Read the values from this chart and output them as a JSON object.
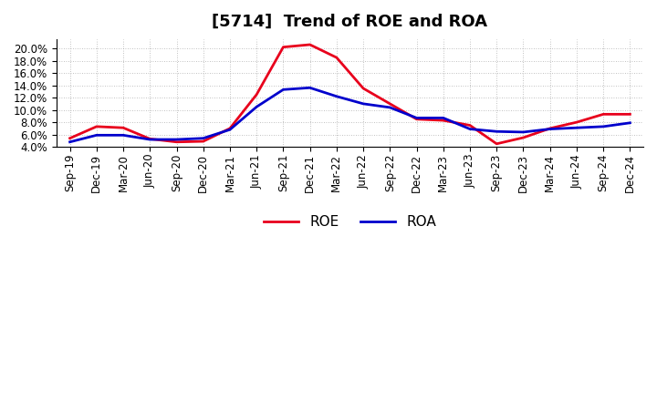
{
  "title": "[5714]  Trend of ROE and ROA",
  "labels": [
    "Sep-19",
    "Dec-19",
    "Mar-20",
    "Jun-20",
    "Sep-20",
    "Dec-20",
    "Mar-21",
    "Jun-21",
    "Sep-21",
    "Dec-21",
    "Mar-22",
    "Jun-22",
    "Sep-22",
    "Dec-22",
    "Mar-23",
    "Jun-23",
    "Sep-23",
    "Dec-23",
    "Mar-24",
    "Jun-24",
    "Sep-24",
    "Dec-24"
  ],
  "ROE": [
    5.4,
    7.3,
    7.1,
    5.3,
    4.8,
    4.9,
    7.0,
    12.5,
    20.2,
    20.6,
    18.5,
    13.5,
    11.0,
    8.5,
    8.3,
    7.5,
    4.5,
    5.5,
    7.0,
    8.0,
    9.3,
    9.3
  ],
  "ROA": [
    4.8,
    5.9,
    5.9,
    5.2,
    5.2,
    5.4,
    6.8,
    10.5,
    13.3,
    13.6,
    12.2,
    11.0,
    10.4,
    8.7,
    8.7,
    6.9,
    6.5,
    6.4,
    6.9,
    7.1,
    7.3,
    7.9
  ],
  "roe_color": "#e8001c",
  "roa_color": "#0000cc",
  "ylim": [
    4.0,
    21.5
  ],
  "yticks": [
    4.0,
    6.0,
    8.0,
    10.0,
    12.0,
    14.0,
    16.0,
    18.0,
    20.0
  ],
  "background_color": "#ffffff",
  "grid_color": "#999999",
  "line_width": 2.0,
  "title_fontsize": 13,
  "legend_fontsize": 11,
  "tick_fontsize": 8.5
}
